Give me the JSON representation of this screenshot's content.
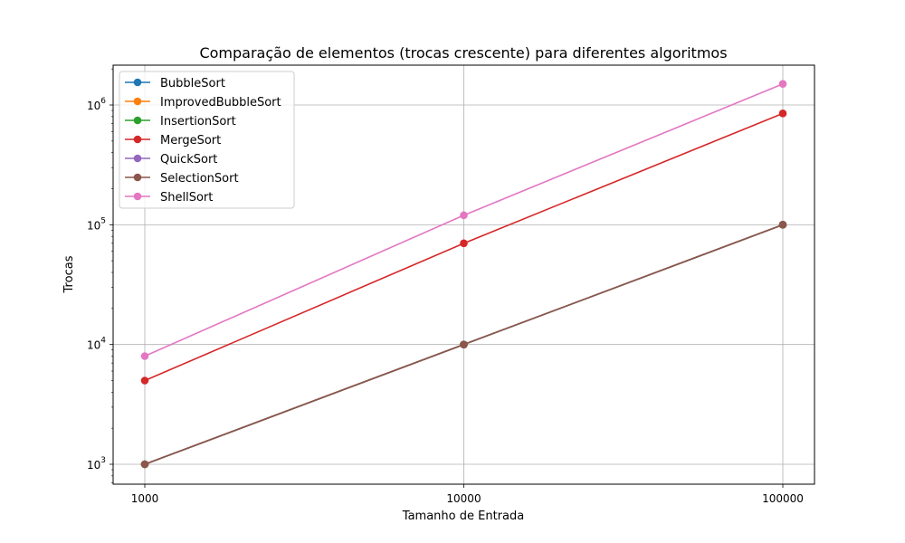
{
  "chart_data": {
    "type": "line",
    "title": "Comparação de elementos (trocas crescente) para diferentes algoritmos",
    "xlabel": "Tamanho de Entrada",
    "ylabel": "Trocas",
    "x": [
      1000,
      10000,
      100000
    ],
    "x_tick_labels": [
      "1000",
      "10000",
      "100000"
    ],
    "x_scale": "log",
    "y_scale": "log",
    "ylim": [
      700,
      2100000
    ],
    "y_ticks": [
      {
        "base": "10",
        "exp": "3",
        "value": 1000
      },
      {
        "base": "10",
        "exp": "4",
        "value": 10000
      },
      {
        "base": "10",
        "exp": "5",
        "value": 100000
      },
      {
        "base": "10",
        "exp": "6",
        "value": 1000000
      }
    ],
    "grid": true,
    "legend_position": "top-left",
    "series": [
      {
        "name": "BubbleSort",
        "color": "#1f77b4",
        "values": [
          1000,
          10000,
          100000
        ]
      },
      {
        "name": "ImprovedBubbleSort",
        "color": "#ff7f0e",
        "values": [
          1000,
          10000,
          100000
        ]
      },
      {
        "name": "InsertionSort",
        "color": "#2ca02c",
        "values": [
          1000,
          10000,
          100000
        ]
      },
      {
        "name": "MergeSort",
        "color": "#d62728",
        "values": [
          5000,
          70000,
          850000
        ]
      },
      {
        "name": "QuickSort",
        "color": "#9467bd",
        "values": [
          1000,
          10000,
          100000
        ]
      },
      {
        "name": "SelectionSort",
        "color": "#8c564b",
        "values": [
          1000,
          10000,
          100000
        ]
      },
      {
        "name": "ShellSort",
        "color": "#e377c2",
        "values": [
          8000,
          120000,
          1500000
        ]
      }
    ]
  }
}
